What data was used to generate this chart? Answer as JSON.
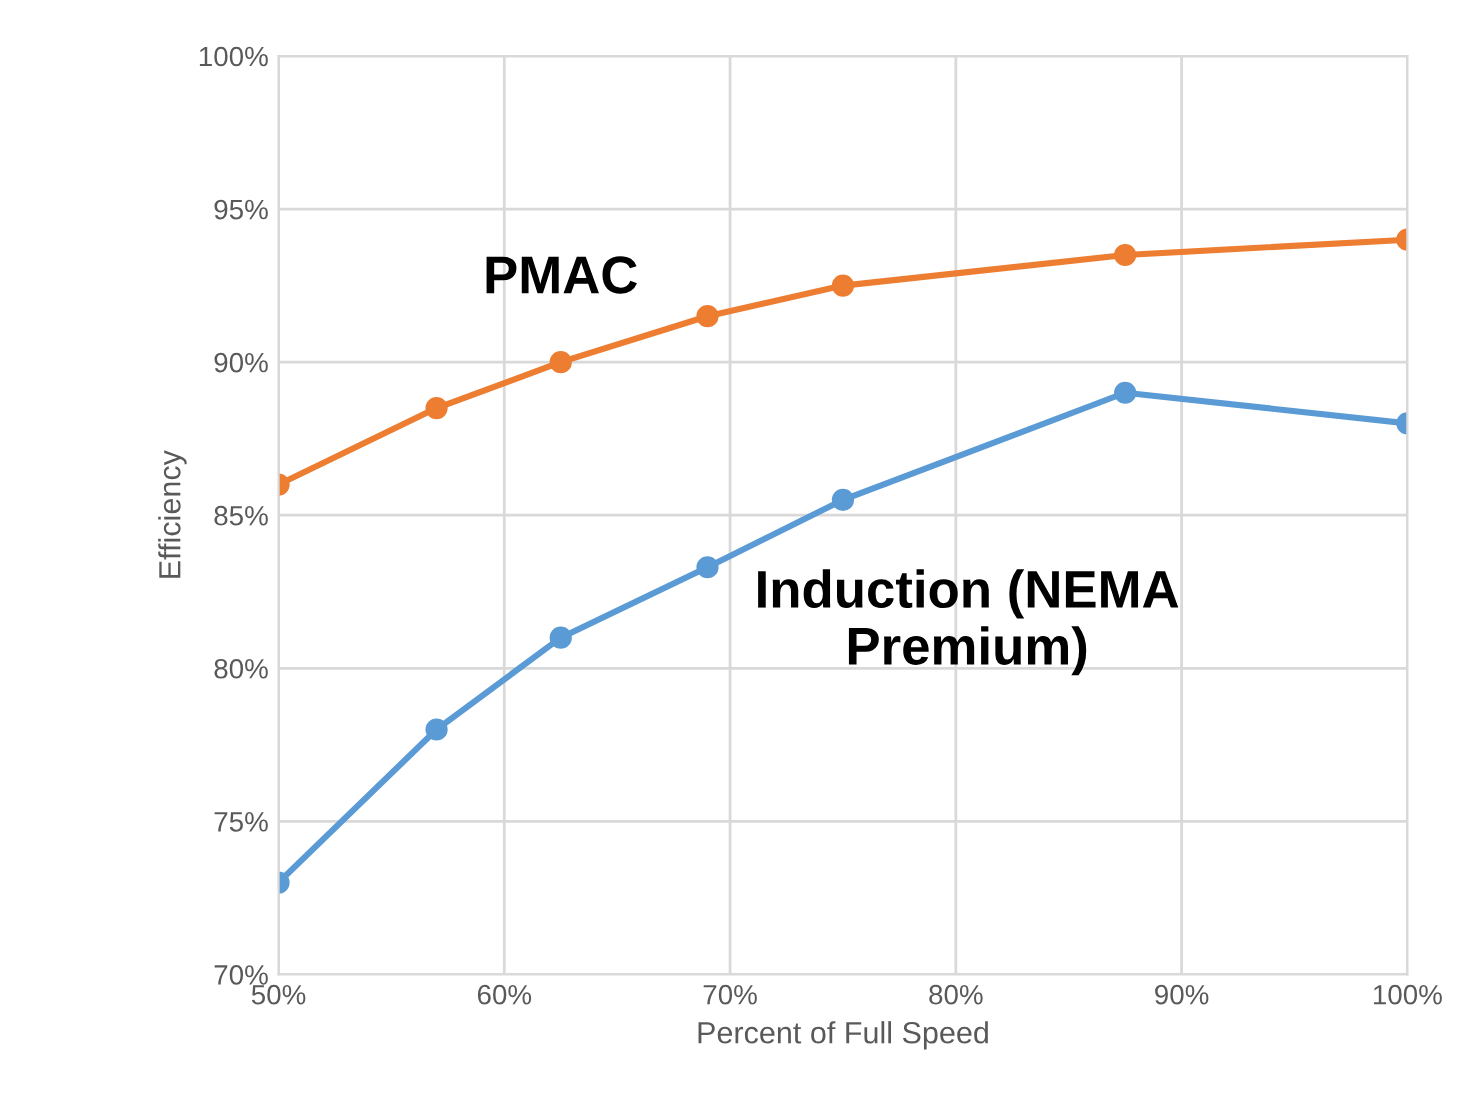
{
  "chart_data": {
    "type": "line",
    "xlabel": "Percent of Full Speed",
    "ylabel": "Efficiency",
    "xlim": [
      50,
      100
    ],
    "ylim": [
      70,
      100
    ],
    "xticks": [
      {
        "value": 50,
        "label": "50%"
      },
      {
        "value": 60,
        "label": "60%"
      },
      {
        "value": 70,
        "label": "70%"
      },
      {
        "value": 80,
        "label": "80%"
      },
      {
        "value": 90,
        "label": "90%"
      },
      {
        "value": 100,
        "label": "100%"
      }
    ],
    "yticks": [
      {
        "value": 70,
        "label": "70%"
      },
      {
        "value": 75,
        "label": "75%"
      },
      {
        "value": 80,
        "label": "80%"
      },
      {
        "value": 85,
        "label": "85%"
      },
      {
        "value": 90,
        "label": "90%"
      },
      {
        "value": 95,
        "label": "95%"
      },
      {
        "value": 100,
        "label": "100%"
      }
    ],
    "x": [
      50,
      57,
      62.5,
      69,
      75,
      87.5,
      100
    ],
    "series": [
      {
        "name": "PMAC",
        "color": "#ed7d31",
        "values": [
          86,
          88.5,
          90,
          91.5,
          92.5,
          93.5,
          94
        ]
      },
      {
        "name": "Induction (NEMA\nPremium)",
        "color": "#5b9bd5",
        "values": [
          73,
          78,
          81,
          83.3,
          85.5,
          89,
          88
        ]
      }
    ],
    "grid": true,
    "legend": false,
    "marker": "circle",
    "line_style": "solid"
  }
}
